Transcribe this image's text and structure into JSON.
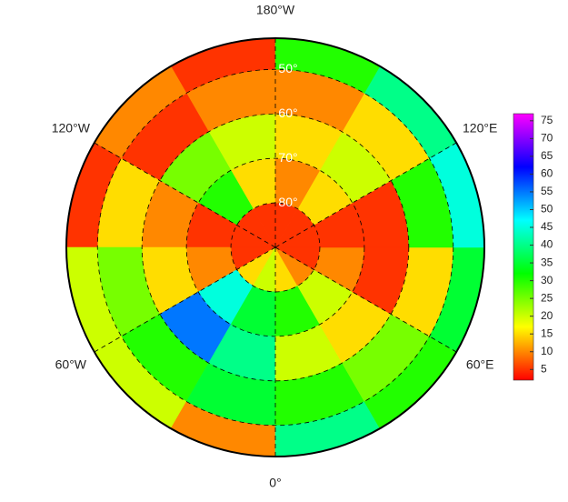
{
  "chart_data": {
    "type": "polar-map",
    "latlim": [
      43,
      90
    ],
    "lat_edges": [
      90,
      80,
      70,
      60,
      50,
      43
    ],
    "lon_edges": [
      -180,
      -150,
      -120,
      -90,
      -60,
      -30,
      0,
      30,
      60,
      90,
      120,
      150,
      180
    ],
    "values": [
      [
        5,
        5,
        5,
        5,
        15,
        20,
        15,
        10,
        5,
        5,
        5,
        5
      ],
      [
        15,
        30,
        5,
        10,
        45,
        35,
        30,
        20,
        10,
        5,
        15,
        10
      ],
      [
        20,
        25,
        10,
        15,
        55,
        40,
        20,
        15,
        5,
        5,
        20,
        15
      ],
      [
        10,
        5,
        15,
        25,
        30,
        35,
        30,
        25,
        15,
        30,
        15,
        10
      ],
      [
        5,
        10,
        5,
        20,
        20,
        10,
        40,
        30,
        35,
        45,
        40,
        30
      ]
    ],
    "lat_ticks": [
      {
        "value": 50,
        "label": "50°"
      },
      {
        "value": 60,
        "label": "60°"
      },
      {
        "value": 70,
        "label": "70°"
      },
      {
        "value": 80,
        "label": "80°"
      }
    ],
    "lon_ticks": [
      {
        "value": -180,
        "label": "180°W"
      },
      {
        "value": -120,
        "label": "120°W"
      },
      {
        "value": -60,
        "label": "60°W"
      },
      {
        "value": 0,
        "label": "0°"
      },
      {
        "value": 60,
        "label": "60°E"
      },
      {
        "value": 120,
        "label": "120°E"
      }
    ],
    "clim": [
      2,
      77
    ],
    "cticks": [
      5,
      10,
      15,
      20,
      25,
      30,
      35,
      40,
      45,
      50,
      55,
      60,
      65,
      70,
      75
    ]
  }
}
